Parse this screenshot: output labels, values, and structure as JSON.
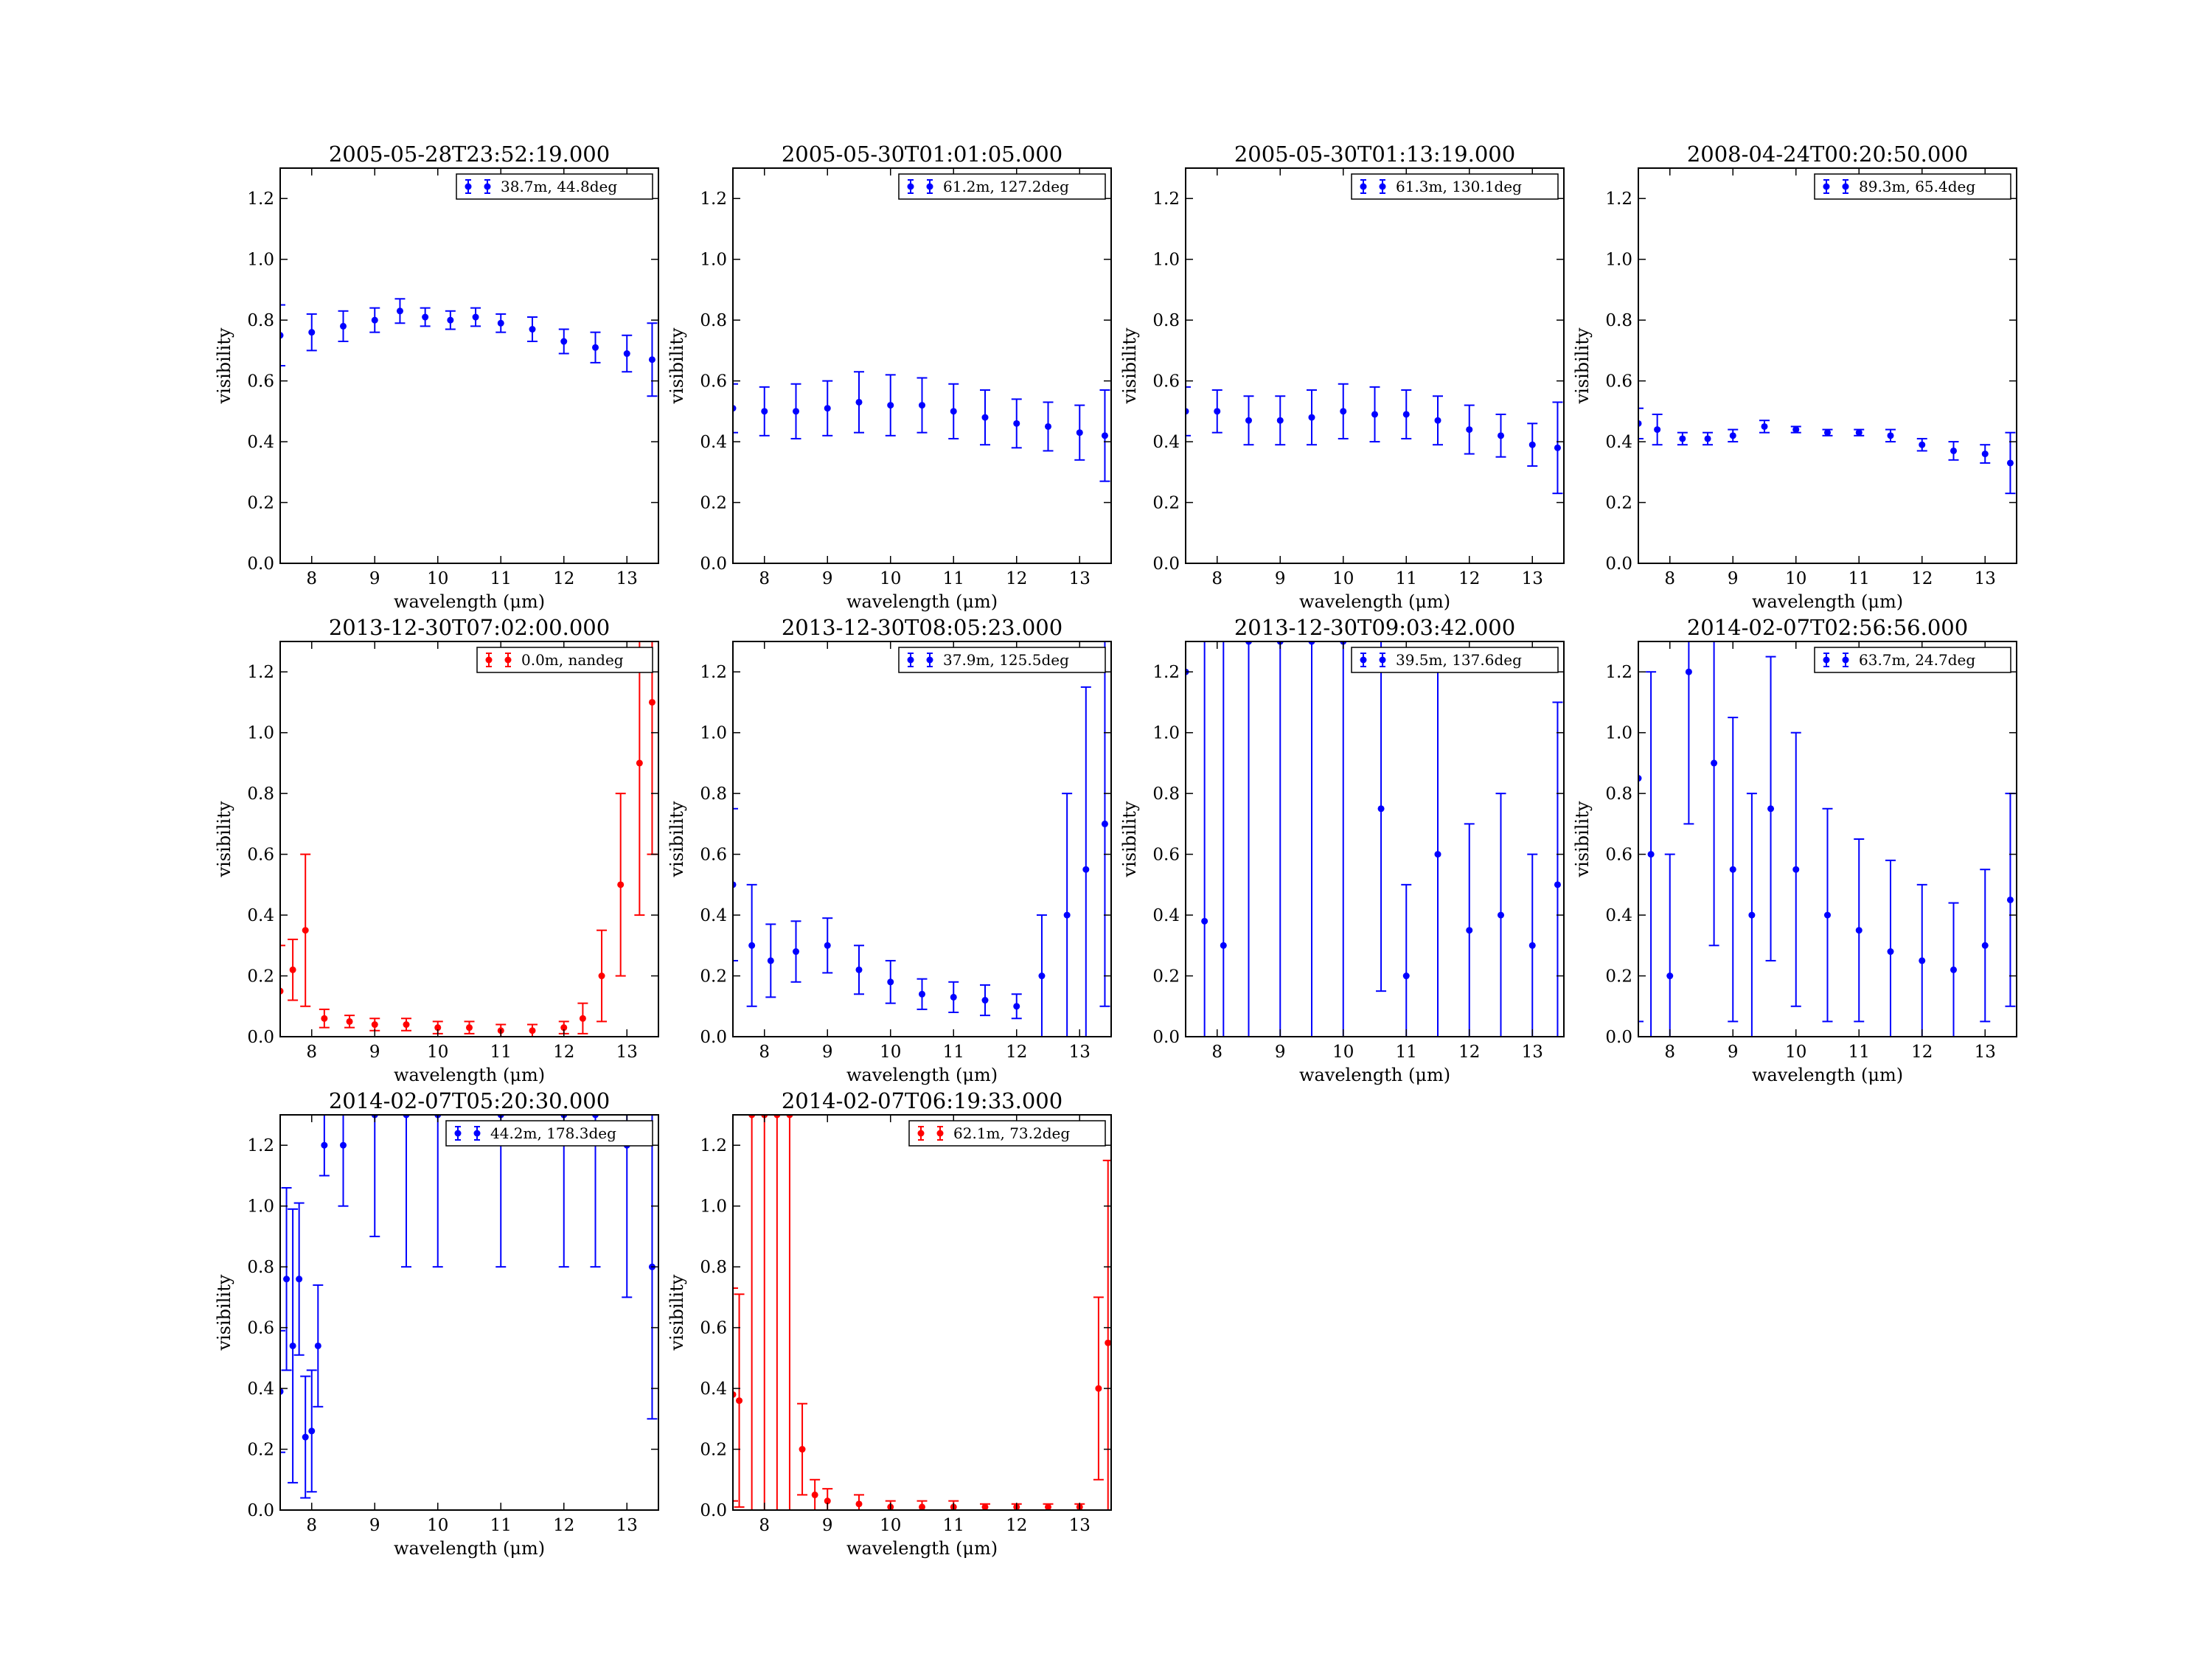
{
  "figure": {
    "colors": {
      "blue": "#0000ff",
      "red": "#ff0000",
      "axes": "#000000"
    },
    "xlabel": "wavelength (μm)",
    "ylabel": "visibility",
    "x_ticks": [
      "8",
      "9",
      "10",
      "11",
      "12",
      "13"
    ],
    "y_ticks": [
      "0.0",
      "0.2",
      "0.4",
      "0.6",
      "0.8",
      "1.0",
      "1.2"
    ],
    "xlim": [
      7.5,
      13.5
    ],
    "ylim": [
      0,
      1.3
    ]
  },
  "chart_data": [
    {
      "type": "scatter",
      "title": "2005-05-28T23:52:19.000",
      "xlabel": "wavelength (μm)",
      "ylabel": "visibility",
      "xlim": [
        7.5,
        13.5
      ],
      "ylim": [
        0,
        1.3
      ],
      "legend": {
        "label": "38.7m, 44.8deg",
        "placement": "top-right"
      },
      "series": [
        {
          "color": "#0000ff",
          "x": [
            7.5,
            8.0,
            8.5,
            9.0,
            9.4,
            9.8,
            10.2,
            10.6,
            11.0,
            11.5,
            12.0,
            12.5,
            13.0,
            13.4
          ],
          "y": [
            0.75,
            0.76,
            0.78,
            0.8,
            0.83,
            0.81,
            0.8,
            0.81,
            0.79,
            0.77,
            0.73,
            0.71,
            0.69,
            0.67
          ],
          "err": [
            0.1,
            0.06,
            0.05,
            0.04,
            0.04,
            0.03,
            0.03,
            0.03,
            0.03,
            0.04,
            0.04,
            0.05,
            0.06,
            0.12
          ]
        }
      ]
    },
    {
      "type": "scatter",
      "title": "2005-05-30T01:01:05.000",
      "xlabel": "wavelength (μm)",
      "ylabel": "visibility",
      "xlim": [
        7.5,
        13.5
      ],
      "ylim": [
        0,
        1.3
      ],
      "legend": {
        "label": "61.2m, 127.2deg",
        "placement": "top-right"
      },
      "series": [
        {
          "color": "#0000ff",
          "x": [
            7.5,
            8.0,
            8.5,
            9.0,
            9.5,
            10.0,
            10.5,
            11.0,
            11.5,
            12.0,
            12.5,
            13.0,
            13.4
          ],
          "y": [
            0.51,
            0.5,
            0.5,
            0.51,
            0.53,
            0.52,
            0.52,
            0.5,
            0.48,
            0.46,
            0.45,
            0.43,
            0.42
          ],
          "err": [
            0.08,
            0.08,
            0.09,
            0.09,
            0.1,
            0.1,
            0.09,
            0.09,
            0.09,
            0.08,
            0.08,
            0.09,
            0.15
          ]
        }
      ]
    },
    {
      "type": "scatter",
      "title": "2005-05-30T01:13:19.000",
      "xlabel": "wavelength (μm)",
      "ylabel": "visibility",
      "xlim": [
        7.5,
        13.5
      ],
      "ylim": [
        0,
        1.3
      ],
      "legend": {
        "label": "61.3m, 130.1deg",
        "placement": "top-right"
      },
      "series": [
        {
          "color": "#0000ff",
          "x": [
            7.5,
            8.0,
            8.5,
            9.0,
            9.5,
            10.0,
            10.5,
            11.0,
            11.5,
            12.0,
            12.5,
            13.0,
            13.4
          ],
          "y": [
            0.5,
            0.5,
            0.47,
            0.47,
            0.48,
            0.5,
            0.49,
            0.49,
            0.47,
            0.44,
            0.42,
            0.39,
            0.38
          ],
          "err": [
            0.08,
            0.07,
            0.08,
            0.08,
            0.09,
            0.09,
            0.09,
            0.08,
            0.08,
            0.08,
            0.07,
            0.07,
            0.15
          ]
        }
      ]
    },
    {
      "type": "scatter",
      "title": "2008-04-24T00:20:50.000",
      "xlabel": "wavelength (μm)",
      "ylabel": "visibility",
      "xlim": [
        7.5,
        13.5
      ],
      "ylim": [
        0,
        1.3
      ],
      "legend": {
        "label": "89.3m, 65.4deg",
        "placement": "top-right"
      },
      "series": [
        {
          "color": "#0000ff",
          "x": [
            7.5,
            7.8,
            8.2,
            8.6,
            9.0,
            9.5,
            10.0,
            10.5,
            11.0,
            11.5,
            12.0,
            12.5,
            13.0,
            13.4
          ],
          "y": [
            0.46,
            0.44,
            0.41,
            0.41,
            0.42,
            0.45,
            0.44,
            0.43,
            0.43,
            0.42,
            0.39,
            0.37,
            0.36,
            0.33
          ],
          "err": [
            0.05,
            0.05,
            0.02,
            0.02,
            0.02,
            0.02,
            0.01,
            0.01,
            0.01,
            0.02,
            0.02,
            0.03,
            0.03,
            0.1
          ]
        }
      ]
    },
    {
      "type": "scatter",
      "title": "2013-12-30T07:02:00.000",
      "xlabel": "wavelength (μm)",
      "ylabel": "visibility",
      "xlim": [
        7.5,
        13.5
      ],
      "ylim": [
        0,
        1.3
      ],
      "legend": {
        "label": "0.0m, nandeg",
        "placement": "top-right"
      },
      "series": [
        {
          "color": "#ff0000",
          "x": [
            7.5,
            7.7,
            7.9,
            8.2,
            8.6,
            9.0,
            9.5,
            10.0,
            10.5,
            11.0,
            11.5,
            12.0,
            12.3,
            12.6,
            12.9,
            13.2,
            13.4
          ],
          "y": [
            0.15,
            0.22,
            0.35,
            0.06,
            0.05,
            0.04,
            0.04,
            0.03,
            0.03,
            0.02,
            0.02,
            0.03,
            0.06,
            0.2,
            0.5,
            0.9,
            1.1
          ],
          "err": [
            0.15,
            0.1,
            0.25,
            0.03,
            0.02,
            0.02,
            0.02,
            0.02,
            0.02,
            0.02,
            0.02,
            0.02,
            0.05,
            0.15,
            0.3,
            0.5,
            0.5
          ]
        }
      ]
    },
    {
      "type": "scatter",
      "title": "2013-12-30T08:05:23.000",
      "xlabel": "wavelength (μm)",
      "ylabel": "visibility",
      "xlim": [
        7.5,
        13.5
      ],
      "ylim": [
        0,
        1.3
      ],
      "legend": {
        "label": "37.9m, 125.5deg",
        "placement": "top-right"
      },
      "series": [
        {
          "color": "#0000ff",
          "x": [
            7.5,
            7.8,
            8.1,
            8.5,
            9.0,
            9.5,
            10.0,
            10.5,
            11.0,
            11.5,
            12.0,
            12.4,
            12.8,
            13.1,
            13.4
          ],
          "y": [
            0.5,
            0.3,
            0.25,
            0.28,
            0.3,
            0.22,
            0.18,
            0.14,
            0.13,
            0.12,
            0.1,
            0.2,
            0.4,
            0.55,
            0.7
          ],
          "err": [
            0.25,
            0.2,
            0.12,
            0.1,
            0.09,
            0.08,
            0.07,
            0.05,
            0.05,
            0.05,
            0.04,
            0.2,
            0.4,
            0.6,
            0.6
          ]
        }
      ]
    },
    {
      "type": "scatter",
      "title": "2013-12-30T09:03:42.000",
      "xlabel": "wavelength (μm)",
      "ylabel": "visibility",
      "xlim": [
        7.5,
        13.5
      ],
      "ylim": [
        0,
        1.3
      ],
      "legend": {
        "label": "39.5m, 137.6deg",
        "placement": "top-right"
      },
      "series": [
        {
          "color": "#0000ff",
          "x": [
            7.5,
            7.8,
            8.1,
            8.5,
            9.0,
            9.5,
            10.0,
            10.6,
            11.0,
            11.5,
            12.0,
            12.5,
            13.0,
            13.4
          ],
          "y": [
            1.2,
            0.38,
            0.3,
            1.3,
            1.3,
            1.3,
            1.3,
            0.75,
            0.2,
            0.6,
            0.35,
            0.4,
            0.3,
            0.5
          ],
          "err": [
            2.0,
            2.0,
            2.0,
            2.0,
            2.0,
            2.0,
            2.0,
            0.6,
            0.3,
            0.6,
            0.35,
            0.4,
            0.3,
            0.6
          ]
        }
      ]
    },
    {
      "type": "scatter",
      "title": "2014-02-07T02:56:56.000",
      "xlabel": "wavelength (μm)",
      "ylabel": "visibility",
      "xlim": [
        7.5,
        13.5
      ],
      "ylim": [
        0,
        1.3
      ],
      "legend": {
        "label": "63.7m, 24.7deg",
        "placement": "top-right"
      },
      "series": [
        {
          "color": "#0000ff",
          "x": [
            7.5,
            7.7,
            8.0,
            8.3,
            8.7,
            9.0,
            9.3,
            9.6,
            10.0,
            10.5,
            11.0,
            11.5,
            12.0,
            12.5,
            13.0,
            13.4
          ],
          "y": [
            0.85,
            0.6,
            0.2,
            1.2,
            0.9,
            0.55,
            0.4,
            0.75,
            0.55,
            0.4,
            0.35,
            0.28,
            0.25,
            0.22,
            0.3,
            0.45
          ],
          "err": [
            0.8,
            0.6,
            0.4,
            0.5,
            0.6,
            0.5,
            0.4,
            0.5,
            0.45,
            0.35,
            0.3,
            0.3,
            0.25,
            0.22,
            0.25,
            0.35
          ]
        }
      ]
    },
    {
      "type": "scatter",
      "title": "2014-02-07T05:20:30.000",
      "xlabel": "wavelength (μm)",
      "ylabel": "visibility",
      "xlim": [
        7.5,
        13.5
      ],
      "ylim": [
        0,
        1.3
      ],
      "legend": {
        "label": "44.2m, 178.3deg",
        "placement": "top-right"
      },
      "series": [
        {
          "color": "#0000ff",
          "x": [
            7.5,
            7.6,
            7.7,
            7.8,
            7.9,
            8.0,
            8.1,
            8.2,
            8.5,
            9.0,
            9.5,
            10.0,
            11.0,
            12.0,
            12.5,
            13.0,
            13.4
          ],
          "y": [
            0.39,
            0.76,
            0.54,
            0.76,
            0.24,
            0.26,
            0.54,
            1.2,
            1.2,
            1.3,
            1.3,
            1.3,
            1.3,
            1.3,
            1.3,
            1.2,
            0.8
          ],
          "err": [
            0.2,
            0.3,
            0.45,
            0.25,
            0.2,
            0.2,
            0.2,
            0.1,
            0.2,
            0.4,
            0.5,
            0.5,
            0.5,
            0.5,
            0.5,
            0.5,
            0.5
          ]
        }
      ]
    },
    {
      "type": "scatter",
      "title": "2014-02-07T06:19:33.000",
      "xlabel": "wavelength (μm)",
      "ylabel": "visibility",
      "xlim": [
        7.5,
        13.5
      ],
      "ylim": [
        0,
        1.3
      ],
      "legend": {
        "label": "62.1m, 73.2deg",
        "placement": "top-right"
      },
      "series": [
        {
          "color": "#ff0000",
          "x": [
            7.5,
            7.6,
            7.8,
            8.0,
            8.2,
            8.4,
            8.6,
            8.8,
            9.0,
            9.5,
            10.0,
            10.5,
            11.0,
            11.5,
            12.0,
            12.5,
            13.0,
            13.3,
            13.45
          ],
          "y": [
            0.38,
            0.36,
            1.3,
            1.3,
            1.3,
            1.3,
            0.2,
            0.05,
            0.03,
            0.02,
            0.01,
            0.01,
            0.01,
            0.01,
            0.01,
            0.01,
            0.01,
            0.4,
            0.55
          ],
          "err": [
            0.35,
            0.35,
            2.0,
            2.0,
            2.0,
            2.0,
            0.15,
            0.05,
            0.04,
            0.03,
            0.02,
            0.02,
            0.02,
            0.01,
            0.01,
            0.01,
            0.01,
            0.3,
            0.6
          ]
        }
      ]
    }
  ]
}
